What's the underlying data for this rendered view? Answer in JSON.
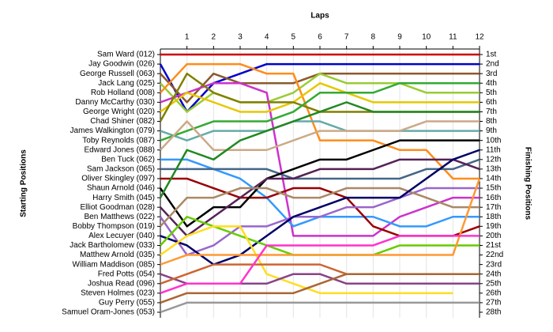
{
  "chart_data": {
    "type": "line",
    "title": "Laps",
    "y_label": "Starting Positions",
    "y2_label": "Finishing Positions",
    "x": [
      0,
      1,
      2,
      3,
      4,
      5,
      6,
      7,
      8,
      9,
      10,
      11,
      12
    ],
    "xlim": [
      0,
      12
    ],
    "xticks": [
      1,
      2,
      3,
      4,
      5,
      6,
      7,
      8,
      9,
      10,
      11,
      12
    ],
    "ylim": [
      28,
      1
    ],
    "yticks": [
      {
        "value": 1,
        "label": "1st"
      },
      {
        "value": 2,
        "label": "2nd"
      },
      {
        "value": 3,
        "label": "3rd"
      },
      {
        "value": 4,
        "label": "4th"
      },
      {
        "value": 5,
        "label": "5th"
      },
      {
        "value": 6,
        "label": "6th"
      },
      {
        "value": 7,
        "label": "7th"
      },
      {
        "value": 8,
        "label": "8th"
      },
      {
        "value": 9,
        "label": "9th"
      },
      {
        "value": 10,
        "label": "10th"
      },
      {
        "value": 11,
        "label": "11th"
      },
      {
        "value": 12,
        "label": "12th"
      },
      {
        "value": 13,
        "label": "13th"
      },
      {
        "value": 14,
        "label": "14th"
      },
      {
        "value": 15,
        "label": "15th"
      },
      {
        "value": 16,
        "label": "16th"
      },
      {
        "value": 17,
        "label": "17th"
      },
      {
        "value": 18,
        "label": "18th"
      },
      {
        "value": 19,
        "label": "19th"
      },
      {
        "value": 20,
        "label": "20th"
      },
      {
        "value": 21,
        "label": "21st"
      },
      {
        "value": 22,
        "label": "22nd"
      },
      {
        "value": 23,
        "label": "23rd"
      },
      {
        "value": 24,
        "label": "24th"
      },
      {
        "value": 25,
        "label": "25th"
      },
      {
        "value": 26,
        "label": "26th"
      },
      {
        "value": 27,
        "label": "27th"
      },
      {
        "value": 28,
        "label": "28th"
      }
    ],
    "grid": true,
    "series": [
      {
        "name": "Sam Ward (012)",
        "color": "#cc0000",
        "values": [
          1,
          1,
          1,
          1,
          1,
          1,
          1,
          1,
          1,
          1,
          1,
          1,
          1
        ]
      },
      {
        "name": "Jay Goodwin (026)",
        "color": "#0000cc",
        "values": [
          2,
          7,
          4,
          3,
          2,
          2,
          2,
          2,
          2,
          2,
          2,
          2,
          2
        ]
      },
      {
        "name": "George Russell (063)",
        "color": "#8b5a2b",
        "values": [
          3,
          6,
          3,
          4,
          4,
          4,
          3,
          3,
          3,
          3,
          3,
          3,
          3
        ]
      },
      {
        "name": "Jack Lang (025)",
        "color": "#99cc33",
        "values": [
          4,
          7,
          5,
          6,
          6,
          5,
          3,
          4,
          4,
          4,
          5,
          5,
          5
        ]
      },
      {
        "name": "Rob Holland (008)",
        "color": "#ff8c1a",
        "values": [
          5,
          2,
          2,
          2,
          3,
          3,
          10,
          10,
          10,
          11,
          11,
          14,
          14
        ]
      },
      {
        "name": "Danny McCarthy (030)",
        "color": "#cc33cc",
        "values": [
          6,
          5,
          4,
          4,
          5,
          20,
          20,
          20,
          20,
          18,
          17,
          16,
          16
        ]
      },
      {
        "name": "George Wright (020)",
        "color": "#e6c800",
        "values": [
          7,
          5,
          6,
          7,
          7,
          6,
          4,
          5,
          6,
          6,
          6,
          6,
          6
        ]
      },
      {
        "name": "Chad Shiner (082)",
        "color": "#808000",
        "values": [
          8,
          3,
          5,
          6,
          6,
          6,
          7,
          7,
          7,
          7,
          7,
          7,
          7
        ]
      },
      {
        "name": "James Walkington (079)",
        "color": "#66aaaa",
        "values": [
          9,
          10,
          9,
          9,
          9,
          8,
          8,
          9,
          9,
          9,
          9,
          9,
          9
        ]
      },
      {
        "name": "Toby Reynolds (087)",
        "color": "#33aa33",
        "values": [
          10,
          9,
          8,
          8,
          8,
          7,
          5,
          5,
          5,
          4,
          4,
          4,
          4
        ]
      },
      {
        "name": "Edward Jones (088)",
        "color": "#ccaa88",
        "values": [
          11,
          8,
          11,
          11,
          11,
          10,
          9,
          9,
          9,
          9,
          8,
          8,
          8
        ]
      },
      {
        "name": "Ben Tuck (062)",
        "color": "#3399ff",
        "values": [
          12,
          12,
          13,
          14,
          16,
          19,
          18,
          18,
          18,
          19,
          19,
          18,
          18
        ]
      },
      {
        "name": "Sam Jackson (065)",
        "color": "#446688",
        "values": [
          13,
          13,
          13,
          13,
          13,
          14,
          14,
          14,
          14,
          14,
          13,
          13,
          12
        ]
      },
      {
        "name": "Oliver Skingley (097)",
        "color": "#990000",
        "values": [
          14,
          14,
          15,
          16,
          16,
          15,
          15,
          16,
          19,
          20,
          20,
          20,
          19
        ]
      },
      {
        "name": "Shaun Arnold (046)",
        "color": "#000000",
        "values": [
          15,
          19,
          17,
          17,
          14,
          13,
          12,
          12,
          11,
          10,
          10,
          10,
          10
        ]
      },
      {
        "name": "Harry Smith (045)",
        "color": "#228822",
        "values": [
          16,
          11,
          12,
          10,
          9,
          8,
          7,
          6,
          7,
          7,
          7,
          7,
          7
        ]
      },
      {
        "name": "Elliot Goodman (028)",
        "color": "#552255",
        "values": [
          17,
          20,
          18,
          16,
          14,
          14,
          13,
          13,
          13,
          12,
          12,
          12,
          13
        ]
      },
      {
        "name": "Ben Matthews (022)",
        "color": "#9966cc",
        "values": [
          18,
          22,
          21,
          19,
          19,
          18,
          18,
          17,
          17,
          16,
          15,
          15,
          15
        ]
      },
      {
        "name": "Bobby Thompson (019)",
        "color": "#aa8866",
        "values": [
          19,
          16,
          16,
          15,
          15,
          16,
          16,
          15,
          15,
          15,
          16,
          17,
          17
        ]
      },
      {
        "name": "Alex Lecuyer (040)",
        "color": "#000066",
        "values": [
          20,
          21,
          23,
          22,
          20,
          18,
          17,
          16,
          16,
          16,
          14,
          12,
          11
        ]
      },
      {
        "name": "Jack Bartholomew (033)",
        "color": "#66cc00",
        "values": [
          21,
          18,
          19,
          20,
          21,
          22,
          22,
          22,
          22,
          21,
          21,
          21,
          21
        ]
      },
      {
        "name": "Matthew Arnold (035)",
        "color": "#ffdd22",
        "values": [
          22,
          20,
          19,
          19,
          24,
          25,
          26,
          26,
          26,
          26,
          26,
          26,
          null
        ]
      },
      {
        "name": "William Maddison (085)",
        "color": "#ff9933",
        "values": [
          23,
          22,
          22,
          22,
          22,
          22,
          22,
          22,
          22,
          22,
          22,
          22,
          14
        ]
      },
      {
        "name": "Fred Potts (054)",
        "color": "#884488",
        "values": [
          24,
          25,
          25,
          25,
          25,
          24,
          24,
          25,
          25,
          25,
          25,
          25,
          25
        ]
      },
      {
        "name": "Joshua Read (096)",
        "color": "#cc6633",
        "values": [
          25,
          24,
          23,
          23,
          23,
          23,
          23,
          24,
          24,
          24,
          24,
          24,
          24
        ]
      },
      {
        "name": "Steven Holmes (023)",
        "color": "#ff33cc",
        "values": [
          26,
          25,
          25,
          25,
          21,
          21,
          21,
          21,
          21,
          20,
          20,
          20,
          20
        ]
      },
      {
        "name": "Guy Perry (055)",
        "color": "#aa6633",
        "values": [
          27,
          26,
          26,
          26,
          26,
          26,
          25,
          24,
          24,
          24,
          24,
          24,
          24
        ]
      },
      {
        "name": "Samuel Oram-Jones (053)",
        "color": "#999999",
        "values": [
          28,
          27,
          27,
          27,
          27,
          27,
          27,
          27,
          27,
          27,
          27,
          27,
          27
        ]
      }
    ]
  }
}
